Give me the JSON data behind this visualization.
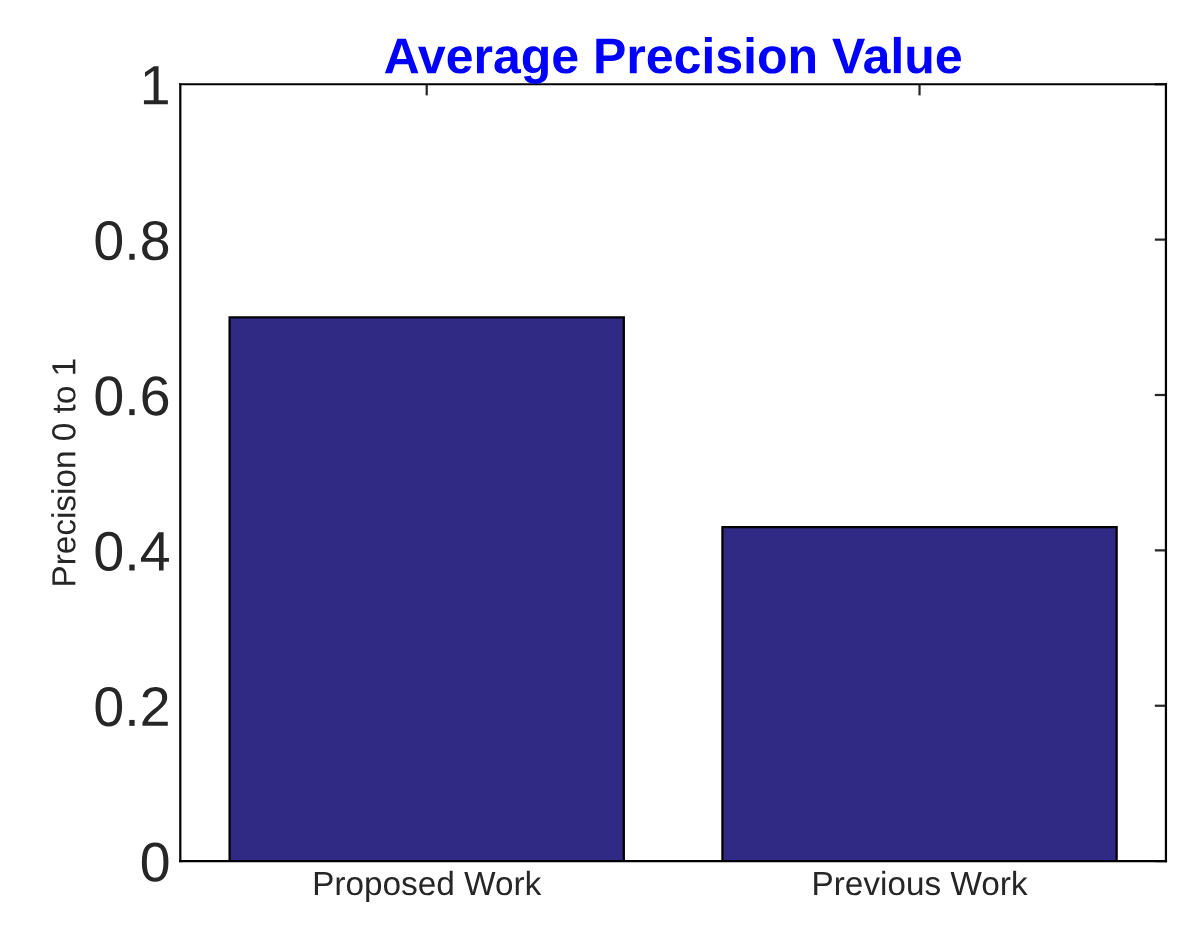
{
  "chart_data": {
    "type": "bar",
    "title": "Average Precision Value",
    "ylabel": "Precision 0 to 1",
    "categories": [
      "Proposed Work",
      "Previous Work"
    ],
    "values": [
      0.7,
      0.43
    ],
    "color": "#312a84",
    "ylim": [
      0,
      1
    ],
    "yticks": [
      0,
      0.2,
      0.4,
      0.6,
      0.8,
      1
    ],
    "grid": false
  }
}
